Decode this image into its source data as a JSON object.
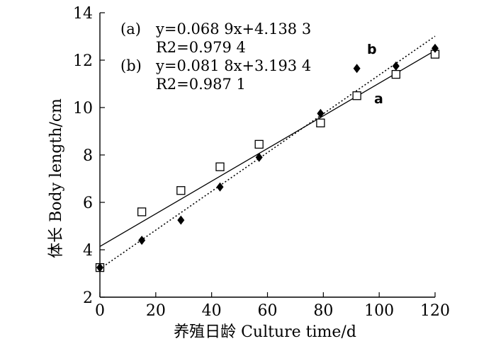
{
  "chart_data": {
    "type": "scatter",
    "title": "",
    "xlabel": "养殖日龄 Culture time/d",
    "ylabel": "体长 Body length/cm",
    "xlim": [
      0,
      120
    ],
    "ylim": [
      2,
      14
    ],
    "x_ticks": [
      "0",
      "20",
      "40",
      "60",
      "80",
      "100",
      "120"
    ],
    "y_ticks": [
      "2",
      "4",
      "6",
      "8",
      "10",
      "12",
      "14"
    ],
    "grid": false,
    "legend": "none",
    "annotations": [
      {
        "id": "a",
        "prefix": "(a)",
        "equation": "y=0.068 9x+4.138 3",
        "r2": "R2=0.979 4"
      },
      {
        "id": "b",
        "prefix": "(b)",
        "equation": "y=0.081 8x+3.193 4",
        "r2": "R2=0.987 1"
      }
    ],
    "series": [
      {
        "name": "a",
        "marker": "open-square",
        "color": "#000000",
        "fit": {
          "slope": 0.0689,
          "intercept": 4.1383,
          "line_style": "solid"
        },
        "x": [
          0,
          15,
          29,
          43,
          57,
          79,
          92,
          106,
          120
        ],
        "y": [
          3.25,
          5.6,
          6.5,
          7.5,
          8.45,
          9.35,
          10.5,
          11.4,
          12.25
        ]
      },
      {
        "name": "b",
        "marker": "filled-diamond",
        "color": "#000000",
        "fit": {
          "slope": 0.0818,
          "intercept": 3.1934,
          "line_style": "dotted"
        },
        "x": [
          0,
          15,
          29,
          43,
          57,
          79,
          92,
          106,
          120
        ],
        "y": [
          3.25,
          4.4,
          5.25,
          6.65,
          7.9,
          9.75,
          11.65,
          11.75,
          12.5
        ]
      }
    ]
  }
}
